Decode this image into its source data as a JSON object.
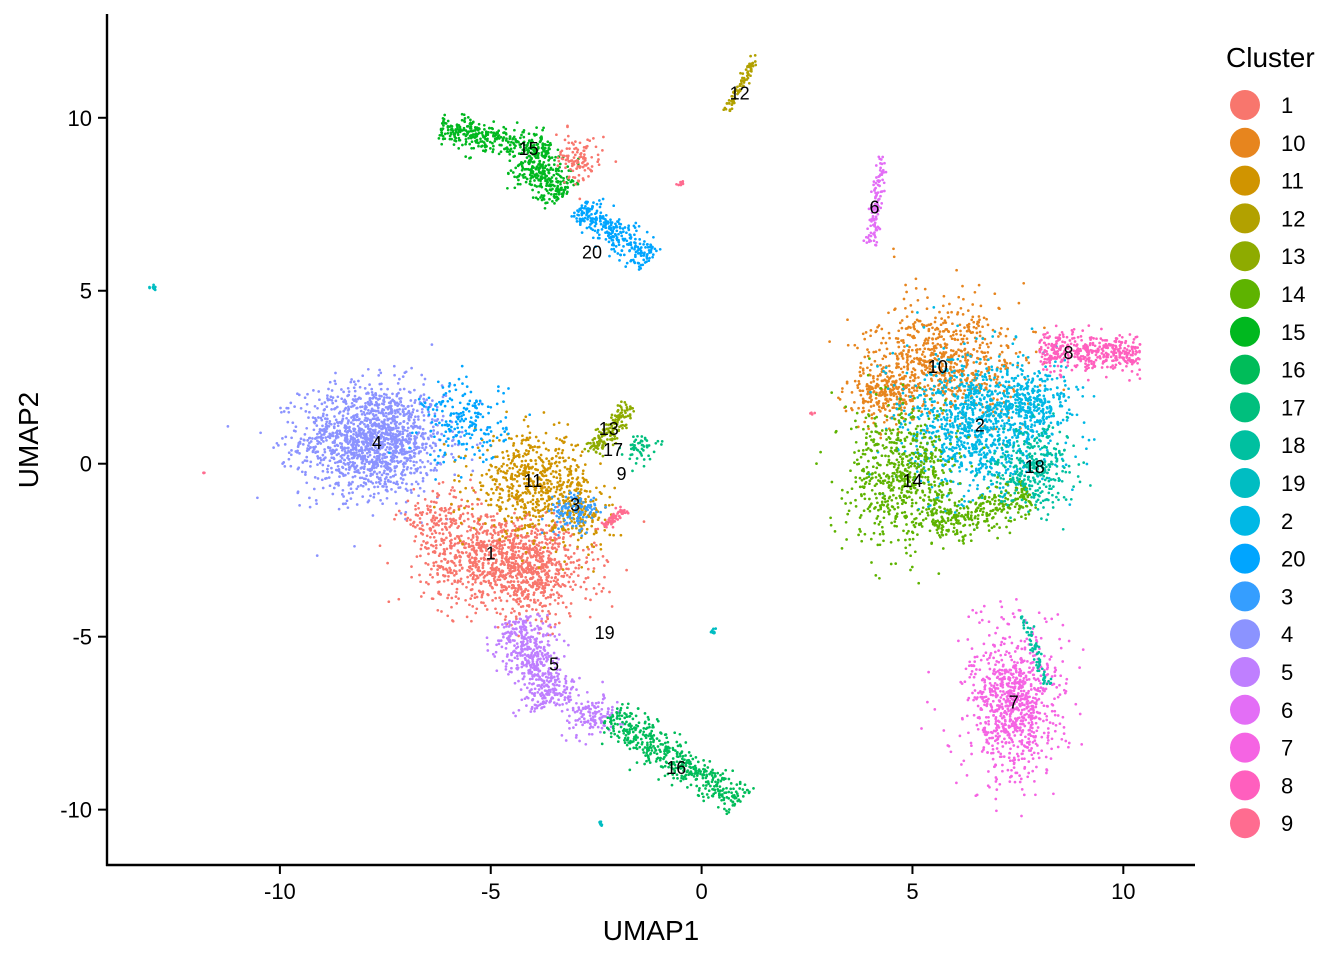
{
  "chart_data": {
    "type": "scatter",
    "xlabel": "UMAP1",
    "ylabel": "UMAP2",
    "xlim": [
      -14.1,
      11.7
    ],
    "ylim": [
      -11.6,
      13.0
    ],
    "x_ticks": [
      -10,
      -5,
      0,
      5,
      10
    ],
    "y_ticks": [
      -10,
      -5,
      0,
      5,
      10
    ],
    "x_tick_labels": [
      "-10",
      "-5",
      "0",
      "5",
      "10"
    ],
    "y_tick_labels": [
      "-10",
      "-5",
      "0",
      "5",
      "10"
    ],
    "grid": false,
    "legend_position": "right",
    "legend_title": "Cluster",
    "legend": [
      {
        "name": "1",
        "color": "#F8766D"
      },
      {
        "name": "10",
        "color": "#E7851E"
      },
      {
        "name": "11",
        "color": "#D09400"
      },
      {
        "name": "12",
        "color": "#B2A100"
      },
      {
        "name": "13",
        "color": "#8EAB00"
      },
      {
        "name": "14",
        "color": "#5EB300"
      },
      {
        "name": "15",
        "color": "#00B81F"
      },
      {
        "name": "16",
        "color": "#00BC59"
      },
      {
        "name": "17",
        "color": "#00BF7D"
      },
      {
        "name": "18",
        "color": "#00C0A0"
      },
      {
        "name": "19",
        "color": "#00BDC2"
      },
      {
        "name": "2",
        "color": "#00B8E5"
      },
      {
        "name": "20",
        "color": "#00A5FF"
      },
      {
        "name": "3",
        "color": "#359EFF"
      },
      {
        "name": "4",
        "color": "#8B93FF"
      },
      {
        "name": "5",
        "color": "#BF7FFF"
      },
      {
        "name": "6",
        "color": "#E36EF6"
      },
      {
        "name": "7",
        "color": "#F564E3"
      },
      {
        "name": "8",
        "color": "#FF5FBE"
      },
      {
        "name": "9",
        "color": "#FF6C90"
      }
    ],
    "cluster_labels": [
      {
        "label": "1",
        "x": -5.0,
        "y": -2.6
      },
      {
        "label": "2",
        "x": 6.6,
        "y": 1.1
      },
      {
        "label": "3",
        "x": -3.0,
        "y": -1.2
      },
      {
        "label": "4",
        "x": -7.7,
        "y": 0.6
      },
      {
        "label": "5",
        "x": -3.5,
        "y": -5.8
      },
      {
        "label": "6",
        "x": 4.1,
        "y": 7.4
      },
      {
        "label": "7",
        "x": 7.4,
        "y": -6.9
      },
      {
        "label": "8",
        "x": 8.7,
        "y": 3.2
      },
      {
        "label": "9",
        "x": -1.9,
        "y": -0.3
      },
      {
        "label": "10",
        "x": 5.6,
        "y": 2.8
      },
      {
        "label": "11",
        "x": -4.0,
        "y": -0.5
      },
      {
        "label": "12",
        "x": 0.9,
        "y": 10.7
      },
      {
        "label": "13",
        "x": -2.2,
        "y": 1.0
      },
      {
        "label": "14",
        "x": 5.0,
        "y": -0.5
      },
      {
        "label": "15",
        "x": -4.1,
        "y": 9.1
      },
      {
        "label": "16",
        "x": -0.6,
        "y": -8.8
      },
      {
        "label": "17",
        "x": -2.1,
        "y": 0.4
      },
      {
        "label": "18",
        "x": 7.9,
        "y": -0.1
      },
      {
        "label": "19",
        "x": -2.3,
        "y": -4.9
      },
      {
        "label": "20",
        "x": -2.6,
        "y": 6.1
      }
    ],
    "clusters": [
      {
        "name": "4",
        "n": 1500,
        "shapes": [
          {
            "t": "g",
            "cx": -7.8,
            "cy": 0.7,
            "sx": 0.85,
            "sy": 0.8,
            "w": 1
          }
        ]
      },
      {
        "name": "1",
        "n": 1350,
        "shapes": [
          {
            "t": "g",
            "cx": -4.9,
            "cy": -2.7,
            "sx": 0.85,
            "sy": 0.7,
            "w": 0.6
          },
          {
            "t": "g",
            "cx": -3.9,
            "cy": -3.2,
            "sx": 0.7,
            "sy": 0.7,
            "w": 0.3
          },
          {
            "t": "g",
            "cx": -6.3,
            "cy": -1.6,
            "sx": 0.45,
            "sy": 0.4,
            "w": 0.1
          }
        ]
      },
      {
        "name": "11",
        "n": 750,
        "shapes": [
          {
            "t": "g",
            "cx": -4.0,
            "cy": -0.6,
            "sx": 0.7,
            "sy": 0.7,
            "w": 0.8
          },
          {
            "t": "g",
            "cx": -2.8,
            "cy": -1.5,
            "sx": 0.35,
            "sy": 0.5,
            "w": 0.2
          }
        ]
      },
      {
        "name": "20",
        "n": 520,
        "shapes": [
          {
            "t": "g",
            "cx": -5.6,
            "cy": 1.2,
            "sx": 0.5,
            "sy": 0.6,
            "w": 0.4
          },
          {
            "t": "s",
            "x1": -2.9,
            "y1": 7.4,
            "x2": -1.2,
            "y2": 5.9,
            "w": 0.6,
            "s": 0.22
          }
        ]
      },
      {
        "name": "3",
        "n": 120,
        "shapes": [
          {
            "t": "g",
            "cx": -3.0,
            "cy": -1.4,
            "sx": 0.3,
            "sy": 0.3,
            "w": 1
          }
        ]
      },
      {
        "name": "5",
        "n": 650,
        "shapes": [
          {
            "t": "s",
            "x1": -4.4,
            "y1": -4.5,
            "x2": -3.5,
            "y2": -7.0,
            "w": 0.8,
            "s": 0.35
          },
          {
            "t": "g",
            "cx": -2.6,
            "cy": -7.3,
            "sx": 0.35,
            "sy": 0.3,
            "w": 0.2
          }
        ]
      },
      {
        "name": "16",
        "n": 480,
        "shapes": [
          {
            "t": "s",
            "x1": -2.2,
            "y1": -7.3,
            "x2": 0.9,
            "y2": -9.8,
            "w": 1,
            "s": 0.28
          }
        ]
      },
      {
        "name": "13",
        "n": 160,
        "shapes": [
          {
            "t": "s",
            "x1": -2.6,
            "y1": 0.3,
            "x2": -1.7,
            "y2": 1.7,
            "w": 1,
            "s": 0.12
          }
        ]
      },
      {
        "name": "17",
        "n": 50,
        "shapes": [
          {
            "t": "g",
            "cx": -1.5,
            "cy": 0.5,
            "sx": 0.2,
            "sy": 0.2,
            "w": 1
          }
        ]
      },
      {
        "name": "9",
        "n": 60,
        "shapes": [
          {
            "t": "s",
            "x1": -2.3,
            "y1": -1.8,
            "x2": -1.8,
            "y2": -1.3,
            "w": 1,
            "s": 0.06
          }
        ]
      },
      {
        "name": "15",
        "n": 650,
        "shapes": [
          {
            "t": "s",
            "x1": -6.2,
            "y1": 9.7,
            "x2": -3.6,
            "y2": 9.1,
            "w": 0.55,
            "s": 0.22
          },
          {
            "t": "s",
            "x1": -4.2,
            "y1": 8.8,
            "x2": -3.2,
            "y2": 7.8,
            "w": 0.45,
            "s": 0.3
          }
        ]
      },
      {
        "name": "1b",
        "color_of": "1",
        "n": 110,
        "shapes": [
          {
            "t": "g",
            "cx": -2.9,
            "cy": 8.8,
            "sx": 0.25,
            "sy": 0.35,
            "w": 1
          }
        ]
      },
      {
        "name": "12",
        "n": 90,
        "shapes": [
          {
            "t": "s",
            "x1": 0.6,
            "y1": 10.2,
            "x2": 1.3,
            "y2": 11.8,
            "w": 1,
            "s": 0.05
          }
        ]
      },
      {
        "name": "6",
        "n": 120,
        "shapes": [
          {
            "t": "s",
            "x1": 4.0,
            "y1": 6.3,
            "x2": 4.3,
            "y2": 8.9,
            "w": 1,
            "s": 0.08
          }
        ]
      },
      {
        "name": "10",
        "n": 950,
        "shapes": [
          {
            "t": "g",
            "cx": 5.8,
            "cy": 3.0,
            "sx": 0.9,
            "sy": 0.85,
            "w": 0.75
          },
          {
            "t": "g",
            "cx": 4.3,
            "cy": 2.1,
            "sx": 0.4,
            "sy": 0.45,
            "w": 0.25
          }
        ]
      },
      {
        "name": "2",
        "n": 1300,
        "shapes": [
          {
            "t": "g",
            "cx": 6.6,
            "cy": 1.1,
            "sx": 0.9,
            "sy": 1.0,
            "w": 0.8
          },
          {
            "t": "g",
            "cx": 7.8,
            "cy": 1.8,
            "sx": 0.5,
            "sy": 0.5,
            "w": 0.2
          }
        ]
      },
      {
        "name": "14",
        "n": 950,
        "shapes": [
          {
            "t": "g",
            "cx": 4.8,
            "cy": -0.4,
            "sx": 0.7,
            "sy": 1.05,
            "w": 0.7
          },
          {
            "t": "s",
            "x1": 5.5,
            "y1": -1.8,
            "x2": 7.8,
            "y2": -0.9,
            "w": 0.3,
            "s": 0.3
          }
        ]
      },
      {
        "name": "8",
        "n": 420,
        "shapes": [
          {
            "t": "s",
            "x1": 8.0,
            "y1": 3.2,
            "x2": 10.4,
            "y2": 3.2,
            "w": 1,
            "s": 0.28
          }
        ]
      },
      {
        "name": "18",
        "n": 320,
        "shapes": [
          {
            "t": "g",
            "cx": 7.9,
            "cy": -0.1,
            "sx": 0.45,
            "sy": 0.6,
            "w": 1
          }
        ]
      },
      {
        "name": "7",
        "n": 900,
        "shapes": [
          {
            "t": "g",
            "cx": 7.4,
            "cy": -6.9,
            "sx": 0.55,
            "sy": 1.05,
            "w": 1
          }
        ]
      },
      {
        "name": "18b",
        "color_of": "18",
        "n": 70,
        "shapes": [
          {
            "t": "s",
            "x1": 7.6,
            "y1": -4.4,
            "x2": 8.2,
            "y2": -6.4,
            "w": 1,
            "s": 0.06
          }
        ]
      },
      {
        "name": "19",
        "n": 30,
        "shapes": [
          {
            "t": "g",
            "cx": -13.0,
            "cy": 5.1,
            "sx": 0.04,
            "sy": 0.04,
            "w": 0.3
          },
          {
            "t": "g",
            "cx": 0.3,
            "cy": -4.85,
            "sx": 0.05,
            "sy": 0.05,
            "w": 0.4
          },
          {
            "t": "g",
            "cx": -2.4,
            "cy": -10.4,
            "sx": 0.03,
            "sy": 0.03,
            "w": 0.3
          }
        ]
      },
      {
        "name": "9b",
        "color_of": "9",
        "n": 20,
        "shapes": [
          {
            "t": "g",
            "cx": -0.5,
            "cy": 8.1,
            "sx": 0.08,
            "sy": 0.04,
            "w": 0.6
          },
          {
            "t": "g",
            "cx": -11.8,
            "cy": -0.25,
            "sx": 0.02,
            "sy": 0.02,
            "w": 0.2
          },
          {
            "t": "g",
            "cx": 2.6,
            "cy": 1.45,
            "sx": 0.05,
            "sy": 0.04,
            "w": 0.2
          }
        ]
      }
    ]
  }
}
